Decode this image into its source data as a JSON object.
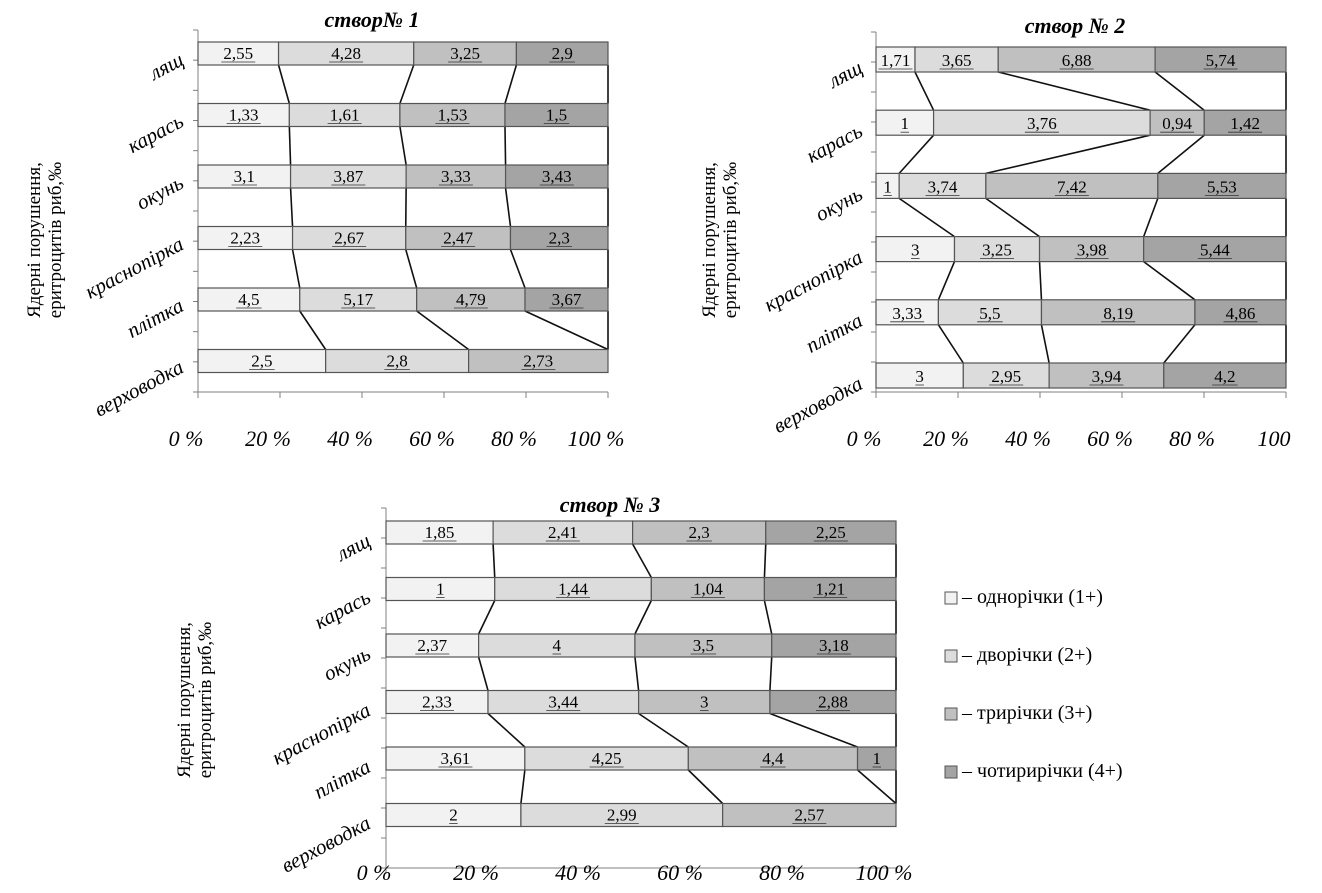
{
  "legend": {
    "items": [
      {
        "label": "– однорічки (1+)",
        "color": "#f2f2f2"
      },
      {
        "label": "– дворічки (2+)",
        "color": "#dcdcdc"
      },
      {
        "label": "– трирічки (3+)",
        "color": "#c0c0c0"
      },
      {
        "label": "– чотирирічки (4+)",
        "color": "#a4a4a4"
      }
    ]
  },
  "chart_data": [
    {
      "type": "bar",
      "stacking": "percent",
      "orientation": "horizontal",
      "title": "створ№ 1",
      "ylabel": [
        "Ядерні порушення,",
        "еритроцитів риб,‰"
      ],
      "categories": [
        "лящ",
        "карась",
        "окунь",
        "краснопірка",
        "плітка",
        "верховодка"
      ],
      "category_labels": [
        "лящ",
        "карась",
        "окунь",
        "красноnірка",
        "плітка",
        "верховодка"
      ],
      "xticks": [
        "0 %",
        "20 %",
        "40 %",
        "60 %",
        "80 %",
        "100 %"
      ],
      "xlim": [
        0,
        100
      ],
      "series_line_connectors": true,
      "series": [
        {
          "name": "однорічки (1+)",
          "values": [
            2.55,
            1.33,
            3.1,
            2.23,
            4.5,
            2.5
          ],
          "labels": [
            "2,55",
            "1,33",
            "3,1",
            "2,23",
            "4,5",
            "2,5"
          ]
        },
        {
          "name": "дворічки (2+)",
          "values": [
            4.28,
            1.61,
            3.87,
            2.67,
            5.17,
            2.8
          ],
          "labels": [
            "4,28",
            "1,61",
            "3,87",
            "2,67",
            "5,17",
            "2,8"
          ]
        },
        {
          "name": "трирічки (3+)",
          "values": [
            3.25,
            1.53,
            3.33,
            2.47,
            4.79,
            2.73
          ],
          "labels": [
            "3,25",
            "1,53",
            "3,33",
            "2,47",
            "4,79",
            "2,73"
          ]
        },
        {
          "name": "чотирирічки (4+)",
          "values": [
            2.9,
            1.5,
            3.43,
            2.3,
            3.67,
            0
          ],
          "labels": [
            "2,9",
            "1,5",
            "3,43",
            "2,3",
            "3,67",
            ""
          ]
        }
      ]
    },
    {
      "type": "bar",
      "stacking": "percent",
      "orientation": "horizontal",
      "title": "створ № 2",
      "ylabel": [
        "Ядерні порушення,",
        "еритроцитів риб,‰"
      ],
      "categories": [
        "лящ",
        "карась",
        "окунь",
        "краснопірка",
        "плітка",
        "верховодка"
      ],
      "category_labels": [
        "лящ",
        "карась",
        "окунь",
        "краснопірка",
        "плітка",
        "верховодка"
      ],
      "xticks": [
        "0 %",
        "20 %",
        "40 %",
        "60 %",
        "80 %",
        "100"
      ],
      "xlim": [
        0,
        100
      ],
      "series_line_connectors": true,
      "series": [
        {
          "name": "однорічки (1+)",
          "values": [
            1.71,
            1,
            1,
            3,
            3.33,
            3
          ],
          "labels": [
            "1,71",
            "1",
            "1",
            "3",
            "3,33",
            "3"
          ]
        },
        {
          "name": "дворічки (2+)",
          "values": [
            3.65,
            3.76,
            3.74,
            3.25,
            5.5,
            2.95
          ],
          "labels": [
            "3,65",
            "3,76",
            "3,74",
            "3,25",
            "5,5",
            "2,95"
          ]
        },
        {
          "name": "трирічки (3+)",
          "values": [
            6.88,
            0.94,
            7.42,
            3.98,
            8.19,
            3.94
          ],
          "labels": [
            "6,88",
            "0,94",
            "7,42",
            "3,98",
            "8,19",
            "3,94"
          ]
        },
        {
          "name": "чотирирічки (4+)",
          "values": [
            5.74,
            1.42,
            5.53,
            5.44,
            4.86,
            4.2
          ],
          "labels": [
            "5,74",
            "1,42",
            "5,53",
            "5,44",
            "4,86",
            "4,2"
          ]
        }
      ]
    },
    {
      "type": "bar",
      "stacking": "percent",
      "orientation": "horizontal",
      "title": "створ № 3",
      "ylabel": [
        "Ядерні порушення,",
        "еритроцитів риб,‰"
      ],
      "categories": [
        "лящ",
        "карась",
        "окунь",
        "краснопірка",
        "плітка",
        "верховодка"
      ],
      "category_labels": [
        "лящ",
        "карась",
        "окунь",
        "краснопірка",
        "плітка",
        "верховодка"
      ],
      "xticks": [
        "0 %",
        "20 %",
        "40 %",
        "60 %",
        "80 %",
        "100 %"
      ],
      "xlim": [
        0,
        100
      ],
      "series_line_connectors": true,
      "series": [
        {
          "name": "однорічки (1+)",
          "values": [
            1.85,
            1,
            2.37,
            2.33,
            3.61,
            2
          ],
          "labels": [
            "1,85",
            "1",
            "2,37",
            "2,33",
            "3,61",
            "2"
          ]
        },
        {
          "name": "дворічки (2+)",
          "values": [
            2.41,
            1.44,
            4,
            3.44,
            4.25,
            2.99
          ],
          "labels": [
            "2,41",
            "1,44",
            "4",
            "3,44",
            "4,25",
            "2,99"
          ]
        },
        {
          "name": "трирічки (3+)",
          "values": [
            2.3,
            1.04,
            3.5,
            3,
            4.4,
            2.57
          ],
          "labels": [
            "2,3",
            "1,04",
            "3,5",
            "3",
            "4,4",
            "2,57"
          ]
        },
        {
          "name": "чотирирічки (4+)",
          "values": [
            2.25,
            1.21,
            3.18,
            2.88,
            1,
            0
          ],
          "labels": [
            "2,25",
            "1,21",
            "3,18",
            "2,88",
            "1",
            ""
          ]
        }
      ]
    }
  ]
}
